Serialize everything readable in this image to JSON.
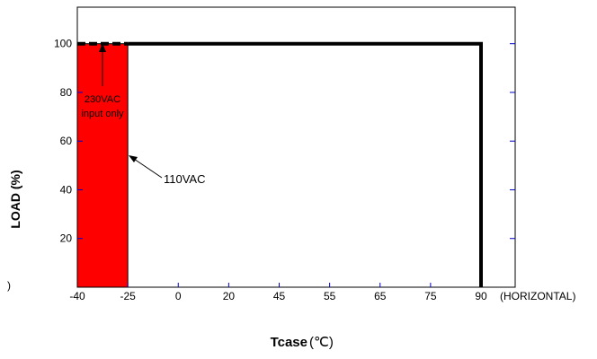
{
  "chart_data": {
    "type": "line",
    "x": [
      -40,
      -25,
      0,
      20,
      45,
      55,
      65,
      75,
      90
    ],
    "x_tick_labels": [
      "-40",
      "-25",
      "0",
      "20",
      "45",
      "55",
      "65",
      "75",
      "90"
    ],
    "x_unit_note": "(HORIZONTAL)",
    "series": [
      {
        "values": [
          100,
          100,
          100,
          100,
          100,
          100,
          100,
          100,
          100
        ]
      }
    ],
    "dashed_segment": {
      "x": [
        -40,
        -25
      ],
      "y": 100
    },
    "shaded_region": {
      "x": [
        -40,
        -25
      ],
      "y": [
        0,
        100
      ],
      "color": "#ff0000"
    },
    "y_ticks": [
      20,
      40,
      60,
      80,
      100
    ],
    "ylim": [
      0,
      115
    ],
    "xlabel_main": "Tcase",
    "xlabel_unit": "(℃)",
    "ylabel": "LOAD (%)",
    "annotations": {
      "input_line1": "230VAC",
      "input_line2": "input only",
      "line_label": "110VAC",
      "edge_mark": ")"
    },
    "colors": {
      "line": "#000000",
      "shade": "#ff0000",
      "tick": "#0000cc"
    }
  }
}
